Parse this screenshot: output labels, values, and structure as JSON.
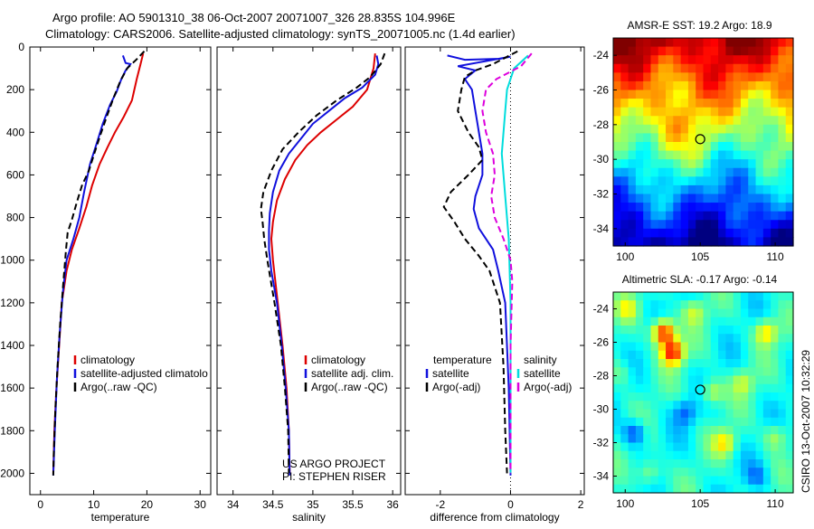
{
  "title_line1": "Argo profile: AO 5901310_38 06-Oct-2007 20071007_326 28.835S 104.996E",
  "title_line2": "Climatology: CARS2006. Satellite-adjusted climatology: synTS_20071005.nc (1.4d earlier)",
  "side_label": "CSIRO 13-Oct-2007 10:32:29",
  "colors": {
    "climatology": "#dd0000",
    "satellite": "#1010dd",
    "argo": "#000000",
    "satellite_diff": "#00dddd",
    "argo_diff": "#dd00dd"
  },
  "chart_data": [
    {
      "type": "line",
      "xlabel": "temperature",
      "ylabel": "",
      "xlim": [
        -2,
        32
      ],
      "ylim": [
        2100,
        0
      ],
      "y_reversed": true,
      "xticks": [
        0,
        10,
        20,
        30
      ],
      "yticks": [
        0,
        200,
        400,
        600,
        800,
        1000,
        1200,
        1400,
        1600,
        1800,
        2000
      ],
      "legend": [
        "climatology",
        "satellite-adjusted climatolo",
        "Argo(..raw -QC)"
      ],
      "series": [
        {
          "name": "climatology",
          "color": "#dd0000",
          "dash": "",
          "points": [
            [
              19.3,
              30
            ],
            [
              18.8,
              80
            ],
            [
              18.1,
              150
            ],
            [
              17.2,
              250
            ],
            [
              15.6,
              330
            ],
            [
              14.0,
              400
            ],
            [
              12.6,
              470
            ],
            [
              11.1,
              550
            ],
            [
              9.7,
              650
            ],
            [
              8.6,
              750
            ],
            [
              7.3,
              850
            ],
            [
              5.9,
              950
            ],
            [
              4.9,
              1050
            ],
            [
              4.0,
              1200
            ],
            [
              3.5,
              1400
            ],
            [
              3.0,
              1600
            ],
            [
              2.6,
              1800
            ],
            [
              2.4,
              2000
            ]
          ]
        },
        {
          "name": "satellite-adjusted climatolo",
          "color": "#1010dd",
          "dash": "",
          "points": [
            [
              15.5,
              40
            ],
            [
              16.0,
              75
            ],
            [
              16.9,
              80
            ],
            [
              16.0,
              110
            ],
            [
              15.2,
              150
            ],
            [
              14.3,
              210
            ],
            [
              13.1,
              270
            ],
            [
              11.7,
              360
            ],
            [
              10.6,
              450
            ],
            [
              9.3,
              550
            ],
            [
              8.2,
              680
            ],
            [
              7.3,
              800
            ],
            [
              6.2,
              900
            ],
            [
              4.9,
              1000
            ],
            [
              4.2,
              1150
            ],
            [
              3.6,
              1350
            ],
            [
              3.1,
              1550
            ],
            [
              2.7,
              1800
            ],
            [
              2.4,
              2010
            ]
          ]
        },
        {
          "name": "Argo(..raw -QC)",
          "color": "#000000",
          "dash": "7 4",
          "points": [
            [
              19.5,
              20
            ],
            [
              18.0,
              60
            ],
            [
              16.3,
              100
            ],
            [
              15.0,
              160
            ],
            [
              13.7,
              240
            ],
            [
              12.4,
              330
            ],
            [
              11.3,
              410
            ],
            [
              10.1,
              500
            ],
            [
              9.1,
              580
            ],
            [
              7.8,
              650
            ],
            [
              6.8,
              730
            ],
            [
              5.9,
              810
            ],
            [
              5.1,
              870
            ],
            [
              4.8,
              950
            ],
            [
              4.3,
              1100
            ],
            [
              3.7,
              1300
            ],
            [
              3.2,
              1500
            ],
            [
              2.8,
              1700
            ],
            [
              2.5,
              1900
            ],
            [
              2.4,
              2010
            ]
          ]
        }
      ]
    },
    {
      "type": "line",
      "xlabel": "salinity",
      "ylabel": "",
      "xlim": [
        33.8,
        36.1
      ],
      "ylim": [
        2100,
        0
      ],
      "y_reversed": true,
      "xticks": [
        34,
        34.5,
        35,
        35.5,
        36
      ],
      "legend": [
        "climatology",
        "satellite adj. clim.",
        "Argo(..raw -QC)"
      ],
      "annotations": [
        "US ARGO PROJECT",
        "PI: STEPHEN RISER"
      ],
      "series": [
        {
          "name": "climatology",
          "color": "#dd0000",
          "dash": "",
          "points": [
            [
              35.78,
              30
            ],
            [
              35.76,
              100
            ],
            [
              35.68,
              200
            ],
            [
              35.5,
              280
            ],
            [
              35.3,
              340
            ],
            [
              35.1,
              400
            ],
            [
              34.93,
              460
            ],
            [
              34.78,
              530
            ],
            [
              34.65,
              620
            ],
            [
              34.55,
              720
            ],
            [
              34.5,
              820
            ],
            [
              34.48,
              900
            ],
            [
              34.5,
              1000
            ],
            [
              34.56,
              1200
            ],
            [
              34.62,
              1400
            ],
            [
              34.67,
              1600
            ],
            [
              34.7,
              1800
            ],
            [
              34.71,
              2000
            ]
          ]
        },
        {
          "name": "satellite adj. clim.",
          "color": "#1010dd",
          "dash": "",
          "points": [
            [
              35.8,
              40
            ],
            [
              35.82,
              80
            ],
            [
              35.78,
              130
            ],
            [
              35.62,
              190
            ],
            [
              35.4,
              240
            ],
            [
              35.2,
              300
            ],
            [
              35.0,
              360
            ],
            [
              34.85,
              430
            ],
            [
              34.7,
              500
            ],
            [
              34.58,
              580
            ],
            [
              34.5,
              680
            ],
            [
              34.46,
              780
            ],
            [
              34.45,
              860
            ],
            [
              34.45,
              950
            ],
            [
              34.48,
              1050
            ],
            [
              34.55,
              1200
            ],
            [
              34.61,
              1400
            ],
            [
              34.66,
              1600
            ],
            [
              34.7,
              1800
            ],
            [
              34.71,
              2010
            ]
          ]
        },
        {
          "name": "Argo(..raw -QC)",
          "color": "#000000",
          "dash": "7 4",
          "points": [
            [
              35.9,
              30
            ],
            [
              35.85,
              80
            ],
            [
              35.72,
              140
            ],
            [
              35.55,
              190
            ],
            [
              35.3,
              250
            ],
            [
              35.05,
              320
            ],
            [
              34.82,
              400
            ],
            [
              34.62,
              480
            ],
            [
              34.48,
              580
            ],
            [
              34.38,
              680
            ],
            [
              34.35,
              760
            ],
            [
              34.37,
              820
            ],
            [
              34.39,
              900
            ],
            [
              34.43,
              1000
            ],
            [
              34.52,
              1200
            ],
            [
              34.6,
              1400
            ],
            [
              34.65,
              1600
            ],
            [
              34.69,
              1800
            ],
            [
              34.7,
              2000
            ]
          ]
        }
      ]
    },
    {
      "type": "line",
      "xlabel": "difference from climatology",
      "ylabel": "",
      "xlim": [
        -3.0,
        2.1
      ],
      "ylim": [
        2100,
        0
      ],
      "y_reversed": true,
      "xticks": [
        -2,
        0,
        2
      ],
      "zero_line": true,
      "legend": [
        "temperature",
        "satellite",
        "Argo(-adj)",
        "salinity",
        "satellite",
        "Argo(-adj)"
      ],
      "series": [
        {
          "name": "satellite",
          "group": "temperature",
          "color": "#1010dd",
          "dash": "",
          "points": [
            [
              -1.8,
              40
            ],
            [
              -1.3,
              60
            ],
            [
              -0.3,
              55
            ],
            [
              0.0,
              45
            ],
            [
              -1.5,
              90
            ],
            [
              -1.0,
              110
            ],
            [
              -1.3,
              150
            ],
            [
              -1.1,
              200
            ],
            [
              -1.0,
              300
            ],
            [
              -0.9,
              400
            ],
            [
              -0.8,
              500
            ],
            [
              -0.8,
              600
            ],
            [
              -1.0,
              700
            ],
            [
              -1.05,
              760
            ],
            [
              -0.9,
              850
            ],
            [
              -0.5,
              950
            ],
            [
              -0.35,
              1050
            ],
            [
              -0.15,
              1200
            ],
            [
              -0.05,
              1600
            ],
            [
              0.0,
              2010
            ]
          ]
        },
        {
          "name": "Argo(-adj)",
          "group": "temperature",
          "color": "#000000",
          "dash": "7 4",
          "points": [
            [
              0.2,
              20
            ],
            [
              -0.5,
              80
            ],
            [
              -1.0,
              110
            ],
            [
              -1.3,
              140
            ],
            [
              -1.4,
              200
            ],
            [
              -1.5,
              300
            ],
            [
              -1.2,
              400
            ],
            [
              -0.9,
              470
            ],
            [
              -0.8,
              530
            ],
            [
              -1.2,
              600
            ],
            [
              -1.7,
              680
            ],
            [
              -1.9,
              750
            ],
            [
              -1.6,
              820
            ],
            [
              -1.3,
              900
            ],
            [
              -0.9,
              980
            ],
            [
              -0.6,
              1050
            ],
            [
              -0.3,
              1200
            ],
            [
              -0.2,
              1500
            ],
            [
              -0.15,
              1800
            ],
            [
              -0.1,
              2000
            ]
          ]
        },
        {
          "name": "satellite",
          "group": "salinity",
          "color": "#00dddd",
          "dash": "",
          "points": [
            [
              0.5,
              40
            ],
            [
              0.1,
              100
            ],
            [
              -0.1,
              200
            ],
            [
              -0.15,
              300
            ],
            [
              -0.2,
              400
            ],
            [
              -0.25,
              500
            ],
            [
              -0.2,
              600
            ],
            [
              -0.15,
              700
            ],
            [
              -0.05,
              900
            ],
            [
              0.0,
              1200
            ],
            [
              0.0,
              2000
            ]
          ]
        },
        {
          "name": "Argo(-adj)",
          "group": "salinity",
          "color": "#dd00dd",
          "dash": "7 4",
          "points": [
            [
              0.6,
              30
            ],
            [
              0.3,
              90
            ],
            [
              -0.4,
              150
            ],
            [
              -0.7,
              200
            ],
            [
              -0.8,
              300
            ],
            [
              -0.7,
              400
            ],
            [
              -0.5,
              500
            ],
            [
              -0.45,
              600
            ],
            [
              -0.55,
              700
            ],
            [
              -0.45,
              800
            ],
            [
              -0.2,
              900
            ],
            [
              0.0,
              1000
            ],
            [
              0.05,
              1100
            ],
            [
              0.0,
              1400
            ],
            [
              0.0,
              2000
            ]
          ]
        }
      ]
    },
    {
      "type": "heatmap",
      "title": "AMSR-E SST: 19.2 Argo: 18.9",
      "xlim": [
        99.2,
        111.2
      ],
      "ylim": [
        -35,
        -23
      ],
      "xticks": [
        100,
        105,
        110
      ],
      "yticks": [
        -24,
        -26,
        -28,
        -30,
        -32,
        -34
      ],
      "marker": [
        105.0,
        -28.835
      ],
      "field": "sst",
      "colormap": "jet"
    },
    {
      "type": "heatmap",
      "title": "Altimetric SLA: -0.17 Argo: -0.14",
      "xlim": [
        99.2,
        111.2
      ],
      "ylim": [
        -35,
        -23
      ],
      "xticks": [
        100,
        105,
        110
      ],
      "yticks": [
        -24,
        -26,
        -28,
        -30,
        -32,
        -34
      ],
      "marker": [
        105.0,
        -28.835
      ],
      "field": "sla",
      "colormap": "jet"
    }
  ]
}
